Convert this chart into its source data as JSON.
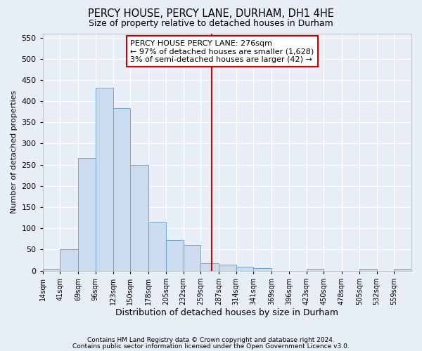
{
  "title": "PERCY HOUSE, PERCY LANE, DURHAM, DH1 4HE",
  "subtitle": "Size of property relative to detached houses in Durham",
  "xlabel": "Distribution of detached houses by size in Durham",
  "ylabel": "Number of detached properties",
  "bar_color": "#ccdcee",
  "bar_edge_color": "#6aaad4",
  "background_color": "#e8eef8",
  "grid_color": "#ffffff",
  "vline_x": 276,
  "vline_color": "#cc0000",
  "annotation_line1": "PERCY HOUSE PERCY LANE: 276sqm",
  "annotation_line2": "← 97% of detached houses are smaller (1,628)",
  "annotation_line3": "3% of semi-detached houses are larger (42) →",
  "annotation_box_color": "#ffffff",
  "annotation_box_edge_color": "#cc0000",
  "footnote1": "Contains HM Land Registry data © Crown copyright and database right 2024.",
  "footnote2": "Contains public sector information licensed under the Open Government Licence v3.0.",
  "bin_labels": [
    "14sqm",
    "41sqm",
    "69sqm",
    "96sqm",
    "123sqm",
    "150sqm",
    "178sqm",
    "205sqm",
    "232sqm",
    "259sqm",
    "287sqm",
    "314sqm",
    "341sqm",
    "369sqm",
    "396sqm",
    "423sqm",
    "450sqm",
    "478sqm",
    "505sqm",
    "532sqm",
    "559sqm"
  ],
  "bin_edges": [
    14,
    41,
    69,
    96,
    123,
    150,
    178,
    205,
    232,
    259,
    287,
    314,
    341,
    369,
    396,
    423,
    450,
    478,
    505,
    532,
    559
  ],
  "bar_heights": [
    5,
    51,
    266,
    432,
    383,
    250,
    115,
    72,
    60,
    17,
    14,
    9,
    6,
    0,
    0,
    5,
    0,
    0,
    5,
    0,
    5
  ],
  "ylim": [
    0,
    560
  ],
  "yticks": [
    0,
    50,
    100,
    150,
    200,
    250,
    300,
    350,
    400,
    450,
    500,
    550
  ]
}
